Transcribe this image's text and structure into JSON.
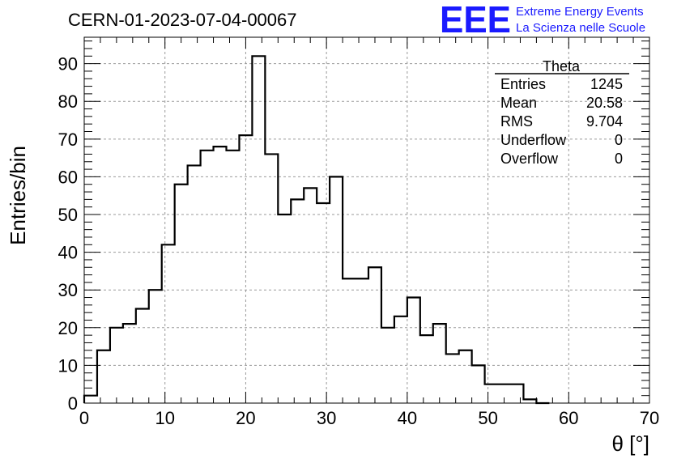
{
  "chart_data": {
    "type": "bar",
    "style": "step-histogram",
    "title": "CERN-01-2023-07-04-00067",
    "xlabel": "θ [°]",
    "ylabel": "Entries/bin",
    "xlim": [
      0,
      70
    ],
    "ylim": [
      0,
      97
    ],
    "xticks": [
      "0",
      "10",
      "20",
      "30",
      "40",
      "50",
      "60",
      "70"
    ],
    "yticks": [
      "0",
      "10",
      "20",
      "30",
      "40",
      "50",
      "60",
      "70",
      "80",
      "90"
    ],
    "grid": true,
    "bin_width": 1.6,
    "bin_start": 0,
    "values": [
      2,
      14,
      20,
      21,
      25,
      30,
      42,
      58,
      63,
      67,
      68,
      67,
      71,
      92,
      66,
      50,
      54,
      57,
      53,
      60,
      33,
      33,
      36,
      20,
      23,
      28,
      18,
      21,
      13,
      14,
      10,
      5,
      5,
      5,
      1,
      0
    ]
  },
  "stats_box": {
    "title": "Theta",
    "rows": [
      {
        "label": "Entries",
        "value": "1245"
      },
      {
        "label": "Mean",
        "value": "20.58"
      },
      {
        "label": "RMS",
        "value": "9.704"
      },
      {
        "label": "Underflow",
        "value": "0"
      },
      {
        "label": "Overflow",
        "value": "0"
      }
    ]
  },
  "logo": {
    "mark": "EEE",
    "line1": "Extreme Energy Events",
    "line2": "La Scienza nelle Scuole",
    "color": "#1a1aff"
  }
}
